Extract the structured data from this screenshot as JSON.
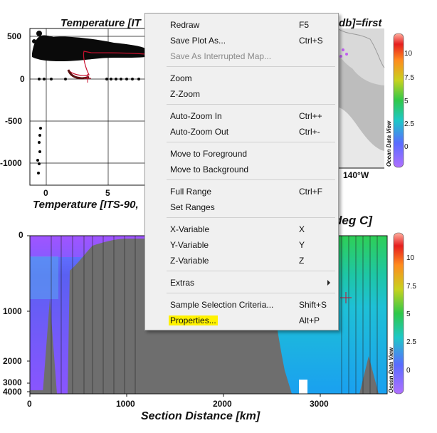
{
  "top_left_plot": {
    "title": "Temperature [IT",
    "xlabel": "Temperature [ITS-90,",
    "y_ticks": [
      "500",
      "0",
      "-500",
      "-1000"
    ],
    "x_ticks": [
      "0",
      "5"
    ]
  },
  "top_right_plot": {
    "title_suffix": "db]=first",
    "lon_label": "140°W",
    "colorbar_ticks": [
      "10",
      "7.5",
      "5",
      "2.5",
      "0"
    ],
    "watermark": "Ocean Data View"
  },
  "section_plot": {
    "title_suffix": "deg C]",
    "y_ticks": [
      "0",
      "1000",
      "2000",
      "3000",
      "4000"
    ],
    "x_ticks": [
      "0",
      "1000",
      "2000",
      "3000"
    ],
    "xlabel": "Section Distance [km]",
    "colorbar_ticks": [
      "10",
      "7.5",
      "5",
      "2.5",
      "0"
    ],
    "watermark": "Ocean Data View"
  },
  "context_menu": {
    "items": [
      {
        "label": "Redraw",
        "shortcut": "F5"
      },
      {
        "label": "Save Plot As...",
        "shortcut": "Ctrl+S"
      },
      {
        "label": "Save As Interrupted Map...",
        "shortcut": ""
      },
      {
        "label": "Zoom",
        "shortcut": ""
      },
      {
        "label": "Z-Zoom",
        "shortcut": ""
      },
      {
        "label": "Auto-Zoom In",
        "shortcut": "Ctrl++"
      },
      {
        "label": "Auto-Zoom Out",
        "shortcut": "Ctrl+-"
      },
      {
        "label": "Move to Foreground",
        "shortcut": ""
      },
      {
        "label": "Move to Background",
        "shortcut": ""
      },
      {
        "label": "Full Range",
        "shortcut": "Ctrl+F"
      },
      {
        "label": "Set Ranges",
        "shortcut": ""
      },
      {
        "label": "X-Variable",
        "shortcut": "X"
      },
      {
        "label": "Y-Variable",
        "shortcut": "Y"
      },
      {
        "label": "Z-Variable",
        "shortcut": "Z"
      },
      {
        "label": "Extras",
        "shortcut": ""
      },
      {
        "label": "Sample Selection Criteria...",
        "shortcut": "Shift+S"
      },
      {
        "label": "Properties...",
        "shortcut": "Alt+P"
      }
    ]
  }
}
